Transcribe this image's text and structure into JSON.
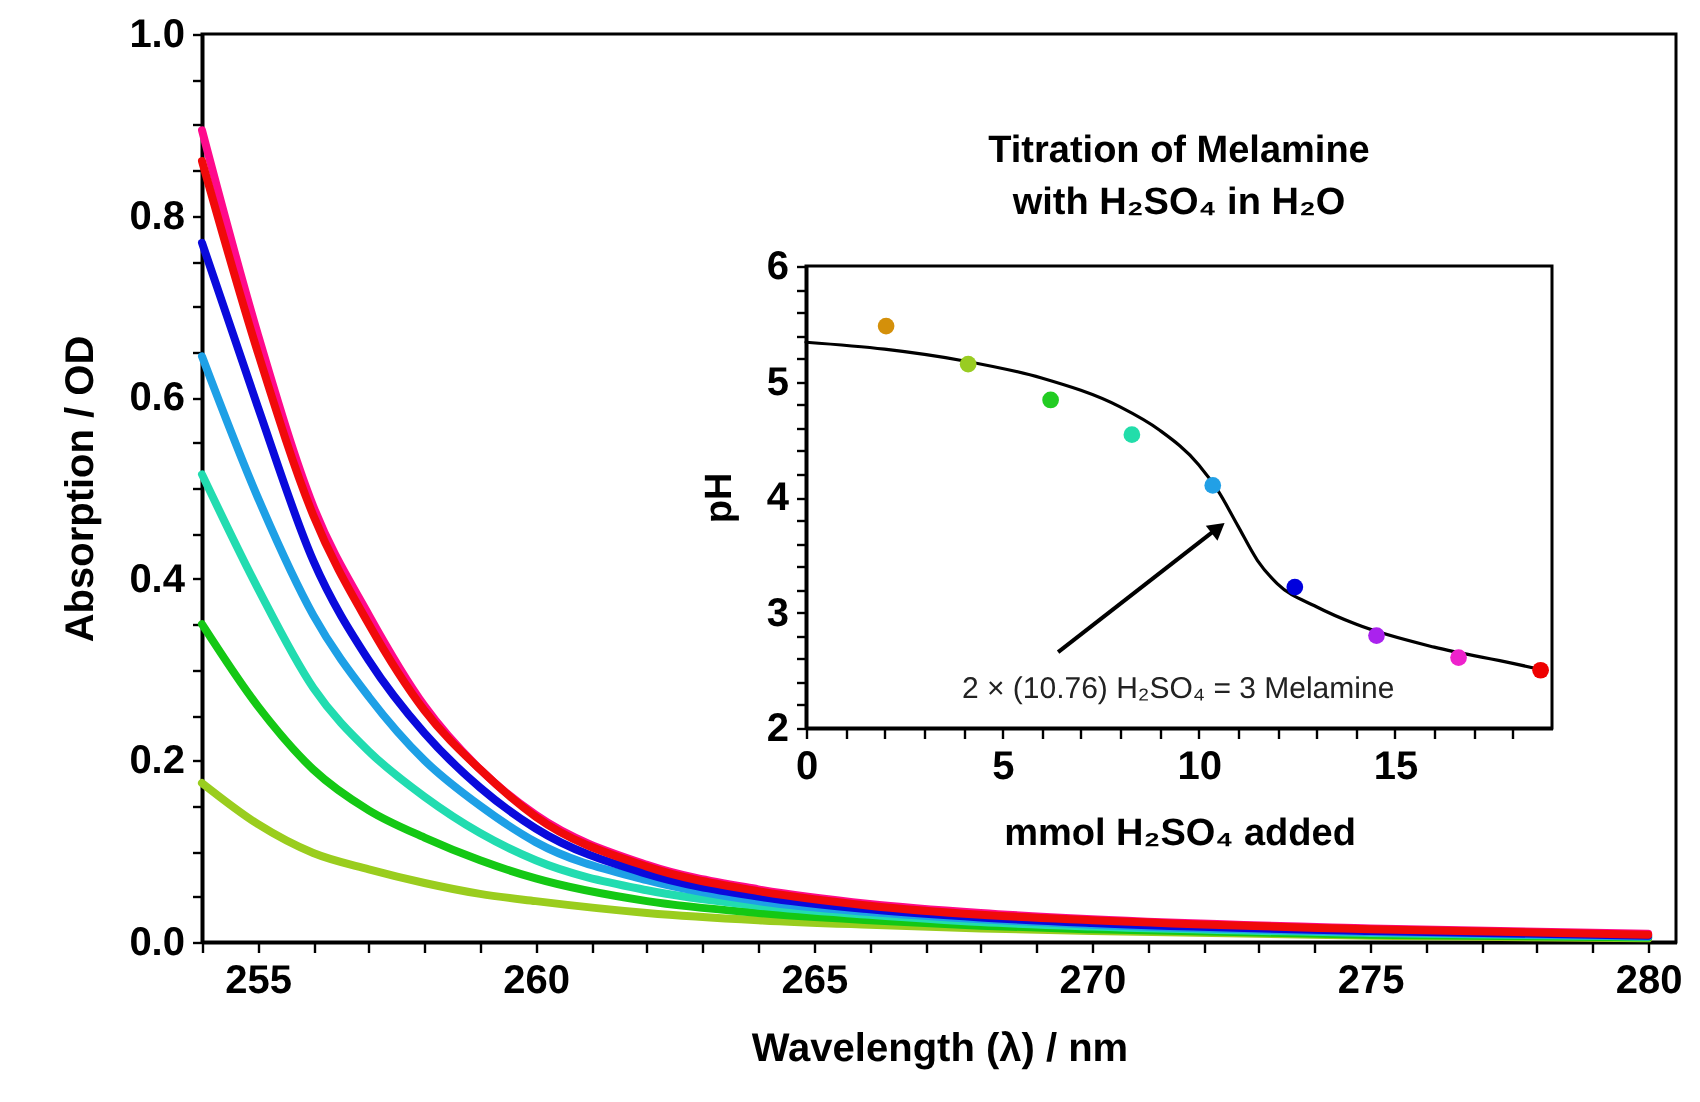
{
  "chart_data": [
    {
      "type": "line",
      "xlabel": "Wavelength (λ) / nm",
      "ylabel": "Absorption / OD",
      "x": [
        254,
        255,
        256,
        257,
        258,
        259,
        260,
        262,
        264,
        266,
        268,
        270,
        275,
        280
      ],
      "series": [
        {
          "color": "#9acd1e",
          "values": [
            0.175,
            0.13,
            0.098,
            0.08,
            0.065,
            0.053,
            0.045,
            0.032,
            0.024,
            0.019,
            0.015,
            0.012,
            0.007,
            0.004
          ]
        },
        {
          "color": "#14c814",
          "values": [
            0.35,
            0.26,
            0.19,
            0.145,
            0.115,
            0.09,
            0.07,
            0.045,
            0.032,
            0.024,
            0.018,
            0.014,
            0.008,
            0.005
          ]
        },
        {
          "color": "#22dcb0",
          "values": [
            0.515,
            0.39,
            0.28,
            0.21,
            0.16,
            0.12,
            0.09,
            0.057,
            0.04,
            0.03,
            0.022,
            0.017,
            0.01,
            0.006
          ]
        },
        {
          "color": "#1ea0e6",
          "values": [
            0.645,
            0.49,
            0.36,
            0.27,
            0.2,
            0.15,
            0.11,
            0.068,
            0.045,
            0.033,
            0.025,
            0.019,
            0.011,
            0.006
          ]
        },
        {
          "color": "#0a0adc",
          "values": [
            0.77,
            0.59,
            0.42,
            0.31,
            0.23,
            0.17,
            0.125,
            0.075,
            0.05,
            0.036,
            0.027,
            0.021,
            0.012,
            0.007
          ]
        },
        {
          "color": "#ff0a8c",
          "values": [
            0.894,
            0.67,
            0.48,
            0.36,
            0.26,
            0.19,
            0.14,
            0.085,
            0.058,
            0.042,
            0.032,
            0.025,
            0.015,
            0.009
          ]
        },
        {
          "color": "#f00a0a",
          "values": [
            0.86,
            0.65,
            0.47,
            0.35,
            0.255,
            0.19,
            0.138,
            0.083,
            0.056,
            0.04,
            0.03,
            0.024,
            0.014,
            0.008
          ]
        }
      ],
      "xlim": [
        254,
        280.5
      ],
      "xticks": [
        {
          "value": 254,
          "label": null
        },
        255,
        {
          "value": 256,
          "label": null
        },
        {
          "value": 257,
          "label": null
        },
        {
          "value": 258,
          "label": null
        },
        {
          "value": 259,
          "label": null
        },
        260,
        {
          "value": 261,
          "label": null
        },
        {
          "value": 262,
          "label": null
        },
        {
          "value": 263,
          "label": null
        },
        {
          "value": 264,
          "label": null
        },
        265,
        {
          "value": 266,
          "label": null
        },
        {
          "value": 267,
          "label": null
        },
        {
          "value": 268,
          "label": null
        },
        {
          "value": 269,
          "label": null
        },
        270,
        {
          "value": 271,
          "label": null
        },
        {
          "value": 272,
          "label": null
        },
        {
          "value": 273,
          "label": null
        },
        {
          "value": 274,
          "label": null
        },
        275,
        {
          "value": 276,
          "label": null
        },
        {
          "value": 277,
          "label": null
        },
        {
          "value": 278,
          "label": null
        },
        {
          "value": 279,
          "label": null
        },
        280
      ],
      "ylim": [
        0,
        1
      ],
      "yticks": [
        {
          "value": 0,
          "label": "0.0"
        },
        {
          "value": 0.05,
          "label": null
        },
        {
          "value": 0.1,
          "label": null
        },
        {
          "value": 0.15,
          "label": null
        },
        {
          "value": 0.2,
          "label": "0.2"
        },
        {
          "value": 0.25,
          "label": null
        },
        {
          "value": 0.3,
          "label": null
        },
        {
          "value": 0.35,
          "label": null
        },
        {
          "value": 0.4,
          "label": "0.4"
        },
        {
          "value": 0.45,
          "label": null
        },
        {
          "value": 0.5,
          "label": null
        },
        {
          "value": 0.55,
          "label": null
        },
        {
          "value": 0.6,
          "label": "0.6"
        },
        {
          "value": 0.65,
          "label": null
        },
        {
          "value": 0.7,
          "label": null
        },
        {
          "value": 0.75,
          "label": null
        },
        {
          "value": 0.8,
          "label": "0.8"
        },
        {
          "value": 0.85,
          "label": null
        },
        {
          "value": 0.9,
          "label": null
        },
        {
          "value": 0.95,
          "label": null
        },
        {
          "value": 1,
          "label": "1.0"
        }
      ]
    },
    {
      "type": "scatter",
      "title": "Titration of Melamine\nwith H₂SO₄ in H₂O",
      "xlabel": "mmol H₂SO₄ added",
      "ylabel": "pH",
      "series": [
        {
          "marker": "circle",
          "x": [
            2.04,
            4.13,
            6.23,
            8.3,
            10.36,
            12.45,
            14.53,
            16.62,
            18.71
          ],
          "values": [
            5.48,
            5.15,
            4.84,
            4.54,
            4.1,
            3.22,
            2.8,
            2.61,
            2.5
          ],
          "colors": [
            "#d4900a",
            "#99cc22",
            "#22cc22",
            "#22ddaa",
            "#22a0e6",
            "#0000dd",
            "#aa22ee",
            "#ee22cc",
            "#ee0000"
          ]
        },
        {
          "type": "line",
          "color": "#000000",
          "x": [
            0,
            2,
            4,
            6,
            8,
            9,
            10,
            10.5,
            11,
            11.5,
            12,
            13,
            14,
            16,
            18,
            18.8
          ],
          "values": [
            5.34,
            5.28,
            5.18,
            5.03,
            4.78,
            4.58,
            4.28,
            4.05,
            3.75,
            3.45,
            3.25,
            3.05,
            2.9,
            2.7,
            2.56,
            2.5
          ]
        }
      ],
      "annotations": [
        {
          "text": "2 × (10.76) H₂SO₄ = 3 Melamine",
          "x": 10.7,
          "y": 3.8
        }
      ],
      "xlim": [
        0,
        19
      ],
      "xticks": [
        0,
        {
          "value": 1,
          "label": null
        },
        {
          "value": 2,
          "label": null
        },
        {
          "value": 3,
          "label": null
        },
        {
          "value": 4,
          "label": null
        },
        5,
        {
          "value": 6,
          "label": null
        },
        {
          "value": 7,
          "label": null
        },
        {
          "value": 8,
          "label": null
        },
        {
          "value": 9,
          "label": null
        },
        10,
        {
          "value": 11,
          "label": null
        },
        {
          "value": 12,
          "label": null
        },
        {
          "value": 13,
          "label": null
        },
        {
          "value": 14,
          "label": null
        },
        15,
        {
          "value": 16,
          "label": null
        },
        {
          "value": 17,
          "label": null
        },
        {
          "value": 18,
          "label": null
        }
      ],
      "ylim": [
        2,
        6
      ],
      "yticks": [
        2,
        {
          "value": 2.2,
          "label": null
        },
        {
          "value": 2.4,
          "label": null
        },
        {
          "value": 2.6,
          "label": null
        },
        {
          "value": 2.8,
          "label": null
        },
        3,
        {
          "value": 3.2,
          "label": null
        },
        {
          "value": 3.4,
          "label": null
        },
        {
          "value": 3.6,
          "label": null
        },
        {
          "value": 3.8,
          "label": null
        },
        4,
        {
          "value": 4.2,
          "label": null
        },
        {
          "value": 4.4,
          "label": null
        },
        {
          "value": 4.6,
          "label": null
        },
        {
          "value": 4.8,
          "label": null
        },
        5,
        {
          "value": 5.2,
          "label": null
        },
        {
          "value": 5.4,
          "label": null
        },
        {
          "value": 5.6,
          "label": null
        },
        {
          "value": 5.8,
          "label": null
        },
        6
      ]
    }
  ]
}
